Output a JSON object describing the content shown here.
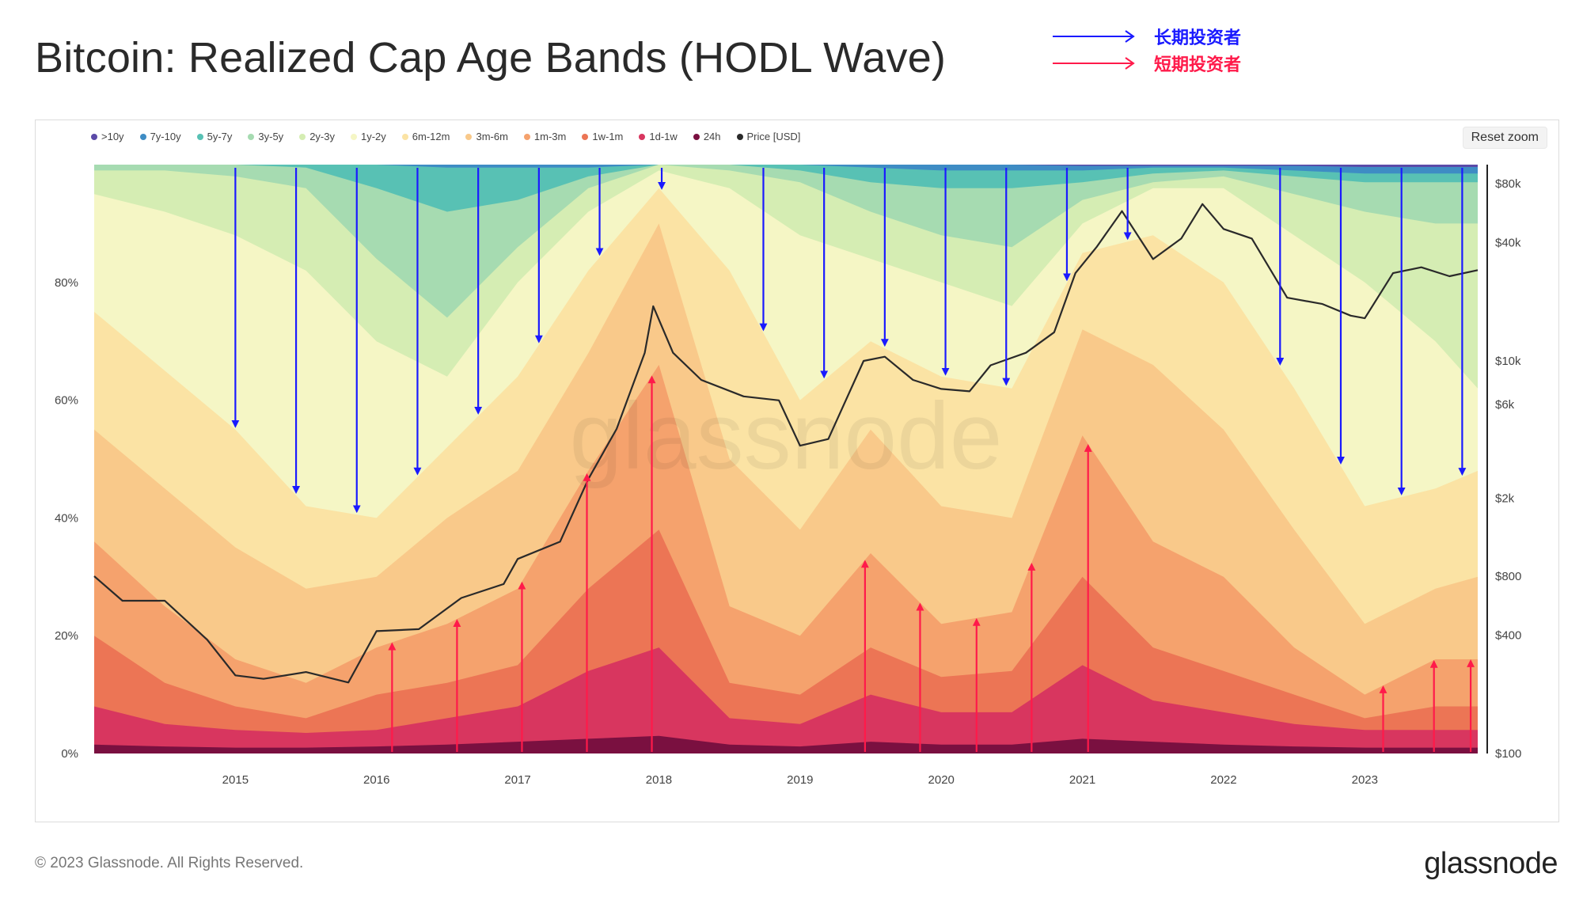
{
  "title": "Bitcoin: Realized Cap Age Bands (HODL Wave)",
  "annotations": {
    "long_term": {
      "label": "长期投资者",
      "color": "#1a1aff"
    },
    "short_term": {
      "label": "短期投资者",
      "color": "#ff1a4a"
    }
  },
  "reset_zoom": "Reset zoom",
  "copyright": "© 2023 Glassnode. All Rights Reserved.",
  "brand": "glassnode",
  "watermark": "glassnode",
  "chart_data": {
    "type": "area",
    "stacking": "percent",
    "title": "Bitcoin: Realized Cap Age Bands (HODL Wave)",
    "x": [
      2014.0,
      2014.5,
      2015.0,
      2015.5,
      2016.0,
      2016.5,
      2017.0,
      2017.5,
      2018.0,
      2018.5,
      2019.0,
      2019.5,
      2020.0,
      2020.5,
      2021.0,
      2021.5,
      2022.0,
      2022.5,
      2023.0,
      2023.5,
      2023.8
    ],
    "x_ticks": [
      "2015",
      "2016",
      "2017",
      "2018",
      "2019",
      "2020",
      "2021",
      "2022",
      "2023"
    ],
    "y_left_ticks": [
      "0%",
      "20%",
      "40%",
      "60%",
      "80%"
    ],
    "y_left_range": [
      0,
      100
    ],
    "y_right_ticks": [
      "$100",
      "$400",
      "$800",
      "$2k",
      "$6k",
      "$10k",
      "$40k",
      "$80k"
    ],
    "y_right_range": [
      100,
      100000
    ],
    "legend_position": "top-left",
    "series": [
      {
        "name": "24h",
        "color": "#7a1040",
        "values": [
          1.5,
          1.2,
          1.0,
          1.0,
          1.2,
          1.5,
          2.0,
          2.5,
          3.0,
          1.5,
          1.2,
          2.0,
          1.5,
          1.5,
          2.5,
          2.0,
          1.5,
          1.2,
          1.0,
          1.0,
          1.0
        ]
      },
      {
        "name": "1d-1w",
        "color": "#d8365f",
        "values": [
          8.0,
          5.0,
          4.0,
          3.5,
          4.0,
          6.0,
          8.0,
          14.0,
          18.0,
          6.0,
          5.0,
          10.0,
          7.0,
          7.0,
          15.0,
          9.0,
          7.0,
          5.0,
          4.0,
          4.0,
          4.0
        ]
      },
      {
        "name": "1w-1m",
        "color": "#ec7555",
        "values": [
          20.0,
          12.0,
          8.0,
          6.0,
          10.0,
          12.0,
          15.0,
          28.0,
          38.0,
          12.0,
          10.0,
          18.0,
          13.0,
          14.0,
          30.0,
          18.0,
          14.0,
          10.0,
          6.0,
          8.0,
          8.0
        ]
      },
      {
        "name": "1m-3m",
        "color": "#f5a26d",
        "values": [
          36.0,
          25.0,
          16.0,
          12.0,
          18.0,
          22.0,
          28.0,
          48.0,
          66.0,
          25.0,
          20.0,
          34.0,
          22.0,
          24.0,
          54.0,
          36.0,
          30.0,
          18.0,
          10.0,
          16.0,
          16.0
        ]
      },
      {
        "name": "3m-6m",
        "color": "#f9c98a",
        "values": [
          55.0,
          45.0,
          35.0,
          28.0,
          30.0,
          40.0,
          48.0,
          68.0,
          90.0,
          50.0,
          38.0,
          55.0,
          42.0,
          40.0,
          72.0,
          66.0,
          55.0,
          38.0,
          22.0,
          28.0,
          30.0
        ]
      },
      {
        "name": "6m-12m",
        "color": "#fbe3a4",
        "values": [
          75.0,
          65.0,
          55.0,
          42.0,
          40.0,
          52.0,
          64.0,
          82.0,
          96.0,
          82.0,
          60.0,
          70.0,
          64.0,
          62.0,
          85.0,
          88.0,
          80.0,
          62.0,
          42.0,
          45.0,
          48.0
        ]
      },
      {
        "name": "1y-2y",
        "color": "#f5f6c5",
        "values": [
          95.0,
          92.0,
          88.0,
          82.0,
          70.0,
          64.0,
          80.0,
          92.0,
          99.0,
          96.0,
          88.0,
          84.0,
          80.0,
          76.0,
          90.0,
          96.0,
          96.0,
          88.0,
          80.0,
          70.0,
          62.0
        ]
      },
      {
        "name": "2y-3y",
        "color": "#d5edb3",
        "values": [
          99.0,
          99.0,
          98.0,
          96.0,
          84.0,
          74.0,
          86.0,
          96.0,
          100.0,
          99.0,
          97.0,
          92.0,
          88.0,
          86.0,
          94.0,
          97.0,
          98.0,
          95.0,
          92.0,
          90.0,
          90.0
        ]
      },
      {
        "name": "3y-5y",
        "color": "#a6dbb1",
        "values": [
          100.0,
          100.0,
          100.0,
          99.5,
          96.0,
          92.0,
          94.0,
          98.0,
          100.0,
          100.0,
          99.0,
          97.0,
          96.0,
          96.0,
          97.0,
          98.5,
          99.0,
          98.0,
          97.0,
          97.0,
          97.0
        ]
      },
      {
        "name": "5y-7y",
        "color": "#58c1b4",
        "values": [
          100.0,
          100.0,
          100.0,
          100.0,
          100.0,
          99.5,
          99.5,
          99.5,
          100.0,
          100.0,
          100.0,
          99.5,
          99.0,
          99.0,
          99.0,
          99.5,
          99.5,
          99.0,
          98.5,
          98.5,
          98.5
        ]
      },
      {
        "name": "7y-10y",
        "color": "#3e8cc4",
        "values": [
          100.0,
          100.0,
          100.0,
          100.0,
          100.0,
          100.0,
          100.0,
          100.0,
          100.0,
          100.0,
          100.0,
          100.0,
          100.0,
          100.0,
          99.8,
          99.8,
          99.8,
          99.8,
          99.6,
          99.6,
          99.6
        ]
      },
      {
        "name": ">10y",
        "color": "#5b4aa8",
        "values": [
          100.0,
          100.0,
          100.0,
          100.0,
          100.0,
          100.0,
          100.0,
          100.0,
          100.0,
          100.0,
          100.0,
          100.0,
          100.0,
          100.0,
          100.0,
          100.0,
          100.0,
          100.0,
          100.0,
          100.0,
          100.0
        ]
      }
    ],
    "series_note": "values are cumulative top-edge percentages for each band",
    "price": {
      "name": "Price [USD]",
      "color": "#2a2a2a",
      "x": [
        2014.0,
        2014.2,
        2014.5,
        2014.8,
        2015.0,
        2015.2,
        2015.5,
        2015.8,
        2016.0,
        2016.3,
        2016.6,
        2016.9,
        2017.0,
        2017.3,
        2017.5,
        2017.7,
        2017.9,
        2017.96,
        2018.1,
        2018.3,
        2018.6,
        2018.85,
        2019.0,
        2019.2,
        2019.45,
        2019.6,
        2019.8,
        2020.0,
        2020.2,
        2020.35,
        2020.6,
        2020.8,
        2020.95,
        2021.1,
        2021.28,
        2021.5,
        2021.7,
        2021.85,
        2022.0,
        2022.2,
        2022.45,
        2022.7,
        2022.9,
        2023.0,
        2023.2,
        2023.4,
        2023.6,
        2023.8
      ],
      "values": [
        800,
        600,
        600,
        380,
        250,
        240,
        260,
        230,
        420,
        430,
        620,
        730,
        980,
        1200,
        2500,
        4500,
        11000,
        19000,
        11000,
        8000,
        6600,
        6300,
        3700,
        4000,
        10000,
        10500,
        8000,
        7200,
        7000,
        9500,
        11000,
        14000,
        28000,
        38000,
        58000,
        33000,
        42000,
        63000,
        47000,
        42000,
        21000,
        19500,
        17000,
        16500,
        28000,
        30000,
        27000,
        29000
      ]
    },
    "long_term_arrows_x": [
      2015.0,
      2015.43,
      2015.86,
      2016.29,
      2016.72,
      2017.15,
      2017.58,
      2018.02,
      2018.74,
      2019.17,
      2019.6,
      2020.03,
      2020.46,
      2020.89,
      2021.32,
      2022.4,
      2022.83,
      2023.26,
      2023.69
    ],
    "short_term_arrows_x": [
      2016.11,
      2016.57,
      2017.03,
      2017.49,
      2017.95,
      2019.46,
      2019.85,
      2020.25,
      2020.64,
      2021.04,
      2023.13,
      2023.49,
      2023.75
    ]
  }
}
